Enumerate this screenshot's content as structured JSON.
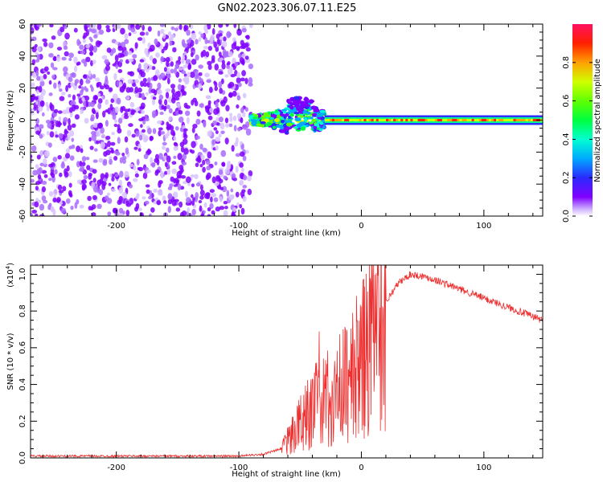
{
  "title": "GN02.2023.306.07.11.E25",
  "colors": {
    "snr_line": "#ee3030",
    "spectrogram_noise": "#7f00ff",
    "axis": "#000000",
    "background": "#ffffff"
  },
  "chart_data": [
    {
      "type": "heatmap",
      "title": "GN02.2023.306.07.11.E25",
      "xlabel": "Height of straight line (km)",
      "ylabel": "Frequency (Hz)",
      "xlim": [
        -270,
        148
      ],
      "ylim": [
        -60,
        60
      ],
      "x_ticks": [
        -200,
        -100,
        0,
        100
      ],
      "x_tick_labels": [
        "-200",
        "-100",
        "0",
        "100"
      ],
      "y_ticks": [
        -60,
        -40,
        -20,
        0,
        20,
        40,
        60
      ],
      "y_tick_labels": [
        "-60",
        "-40",
        "-20",
        "0",
        "20",
        "40",
        "60"
      ],
      "colorbar": {
        "label": "Normalized spectral amplitude",
        "range": [
          0,
          1
        ],
        "ticks": [
          0,
          0.2,
          0.4,
          0.6,
          0.8
        ],
        "tick_labels": [
          "0.0",
          "0.2",
          "0.4",
          "0.6",
          "0.8"
        ],
        "colormap": "hsv (purple at 0 to red/magenta at 1)"
      },
      "regions": [
        {
          "description": "broadband noise, low amplitude",
          "x_range": [
            -270,
            -90
          ],
          "freq_range": [
            -60,
            60
          ],
          "amplitude": 0.05
        },
        {
          "description": "signal onset near 0 Hz",
          "x_range": [
            -90,
            -30
          ],
          "freq_range": [
            -12,
            18
          ],
          "amplitude": 0.5
        },
        {
          "description": "narrowband signal at 0 Hz",
          "x_range": [
            -30,
            148
          ],
          "freq_range": [
            -3,
            3
          ],
          "amplitude": 0.95
        }
      ]
    },
    {
      "type": "line",
      "xlabel": "Height of straight line (km)",
      "ylabel": "SNR (10 * v/v)",
      "y_multiplier_label": "(x10",
      "y_multiplier_exp": "4",
      "y_multiplier_close": ")",
      "xlim": [
        -270,
        148
      ],
      "ylim": [
        0,
        1.05
      ],
      "x_ticks": [
        -200,
        -100,
        0,
        100
      ],
      "x_tick_labels": [
        "-200",
        "-100",
        "0",
        "100"
      ],
      "y_ticks": [
        0,
        0.2,
        0.4,
        0.6,
        0.8,
        1.0
      ],
      "y_tick_labels": [
        "0.0",
        "0.2",
        "0.4",
        "0.6",
        "0.8",
        "1.0"
      ],
      "series": [
        {
          "color": "#ee3030",
          "x": [
            -270,
            -200,
            -100,
            -80,
            -65,
            -60,
            -50,
            -40,
            -30,
            -20,
            -10,
            0,
            10,
            20,
            30,
            40,
            50,
            60,
            80,
            100,
            120,
            148
          ],
          "y": [
            0.01,
            0.01,
            0.01,
            0.02,
            0.05,
            0.1,
            0.2,
            0.3,
            0.32,
            0.38,
            0.45,
            0.55,
            0.7,
            0.85,
            0.95,
            1.0,
            0.99,
            0.97,
            0.92,
            0.87,
            0.82,
            0.75
          ]
        }
      ]
    }
  ]
}
